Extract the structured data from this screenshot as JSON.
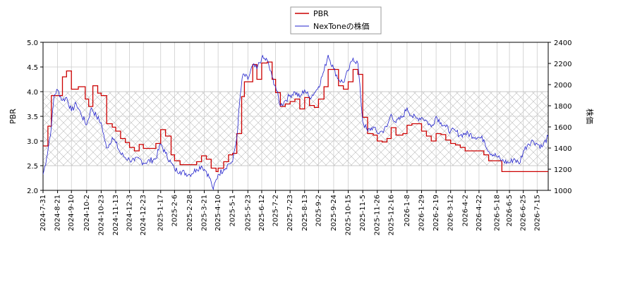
{
  "chart_data": {
    "type": "line",
    "legend": {
      "placement": "top-center",
      "entries": [
        {
          "label": "PBR",
          "color": "#cc0000"
        },
        {
          "label": "NexToneの株価",
          "color": "#2222cc"
        }
      ]
    },
    "ylabel_left": "PBR",
    "ylabel_right": "株価",
    "ylim_left": [
      2.0,
      5.0
    ],
    "ylim_right": [
      1000,
      2400
    ],
    "yticks_left": [
      "2.0",
      "2.5",
      "3.0",
      "3.5",
      "4.0",
      "4.5",
      "5.0"
    ],
    "yticks_right": [
      "1000",
      "1200",
      "1400",
      "1600",
      "1800",
      "2000",
      "2200",
      "2400"
    ],
    "x_range": [
      "2024-7-31",
      "2026-7-31"
    ],
    "x_ticks": [
      "2024-7-31",
      "2024-8-21",
      "2024-9-10",
      "2024-10-2",
      "2024-10-23",
      "2024-11-13",
      "2024-12-3",
      "2024-12-23",
      "2025-1-17",
      "2025-2-6",
      "2025-2-28",
      "2025-3-21",
      "2025-4-10",
      "2025-5-1",
      "2025-5-23",
      "2025-6-12",
      "2025-7-2",
      "2025-7-23",
      "2025-8-13",
      "2025-9-2",
      "2025-9-24",
      "2025-10-15",
      "2025-11-5",
      "2025-11-26",
      "2025-12-16",
      "2026-1-8",
      "2026-1-29",
      "2026-2-19",
      "2026-3-12",
      "2026-4-2",
      "2026-4-22",
      "2026-5-18",
      "2026-6-5",
      "2026-6-25",
      "2026-7-15"
    ],
    "shaded_band_left": [
      2.5,
      4.0
    ],
    "grid": true,
    "series": [
      {
        "name": "PBR",
        "axis": "left",
        "color": "#cc0000",
        "points": [
          [
            "2024-7-31",
            2.9
          ],
          [
            "2024-8-7",
            3.3
          ],
          [
            "2024-8-12",
            3.92
          ],
          [
            "2024-8-21",
            3.92
          ],
          [
            "2024-8-28",
            4.3
          ],
          [
            "2024-9-3",
            4.42
          ],
          [
            "2024-9-10",
            4.05
          ],
          [
            "2024-9-20",
            4.1
          ],
          [
            "2024-9-30",
            3.85
          ],
          [
            "2024-10-5",
            3.7
          ],
          [
            "2024-10-11",
            4.12
          ],
          [
            "2024-10-18",
            3.97
          ],
          [
            "2024-10-23",
            3.92
          ],
          [
            "2024-10-31",
            3.35
          ],
          [
            "2024-11-8",
            3.28
          ],
          [
            "2024-11-13",
            3.2
          ],
          [
            "2024-11-20",
            3.05
          ],
          [
            "2024-11-27",
            2.97
          ],
          [
            "2024-12-3",
            2.87
          ],
          [
            "2024-12-10",
            2.8
          ],
          [
            "2024-12-17",
            2.93
          ],
          [
            "2024-12-23",
            2.85
          ],
          [
            "2025-1-10",
            2.95
          ],
          [
            "2025-1-17",
            3.23
          ],
          [
            "2025-1-24",
            3.1
          ],
          [
            "2025-2-1",
            2.72
          ],
          [
            "2025-2-6",
            2.6
          ],
          [
            "2025-2-14",
            2.52
          ],
          [
            "2025-2-28",
            2.52
          ],
          [
            "2025-3-10",
            2.58
          ],
          [
            "2025-3-17",
            2.7
          ],
          [
            "2025-3-24",
            2.63
          ],
          [
            "2025-3-31",
            2.45
          ],
          [
            "2025-4-7",
            2.38
          ],
          [
            "2025-4-10",
            2.45
          ],
          [
            "2025-4-18",
            2.58
          ],
          [
            "2025-4-25",
            2.72
          ],
          [
            "2025-5-1",
            2.75
          ],
          [
            "2025-5-7",
            3.15
          ],
          [
            "2025-5-14",
            3.9
          ],
          [
            "2025-5-18",
            4.2
          ],
          [
            "2025-5-23",
            4.2
          ],
          [
            "2025-5-30",
            4.55
          ],
          [
            "2025-6-5",
            4.25
          ],
          [
            "2025-6-12",
            4.58
          ],
          [
            "2025-6-20",
            4.6
          ],
          [
            "2025-6-27",
            4.25
          ],
          [
            "2025-7-2",
            3.98
          ],
          [
            "2025-7-9",
            3.7
          ],
          [
            "2025-7-16",
            3.75
          ],
          [
            "2025-7-23",
            3.8
          ],
          [
            "2025-7-30",
            3.85
          ],
          [
            "2025-8-6",
            3.65
          ],
          [
            "2025-8-13",
            3.88
          ],
          [
            "2025-8-20",
            3.72
          ],
          [
            "2025-8-27",
            3.68
          ],
          [
            "2025-9-2",
            3.85
          ],
          [
            "2025-9-10",
            4.1
          ],
          [
            "2025-9-16",
            4.45
          ],
          [
            "2025-9-24",
            4.45
          ],
          [
            "2025-10-1",
            4.12
          ],
          [
            "2025-10-8",
            4.05
          ],
          [
            "2025-10-15",
            4.2
          ],
          [
            "2025-10-22",
            4.45
          ],
          [
            "2025-10-29",
            4.35
          ],
          [
            "2025-11-5",
            3.48
          ],
          [
            "2025-11-12",
            3.15
          ],
          [
            "2025-11-20",
            3.12
          ],
          [
            "2025-11-26",
            3.0
          ],
          [
            "2025-12-3",
            2.98
          ],
          [
            "2025-12-10",
            3.05
          ],
          [
            "2025-12-16",
            3.27
          ],
          [
            "2025-12-23",
            3.12
          ],
          [
            "2026-1-2",
            3.15
          ],
          [
            "2026-1-8",
            3.32
          ],
          [
            "2026-1-15",
            3.35
          ],
          [
            "2026-1-22",
            3.35
          ],
          [
            "2026-1-29",
            3.2
          ],
          [
            "2026-2-5",
            3.1
          ],
          [
            "2026-2-12",
            3.0
          ],
          [
            "2026-2-19",
            3.15
          ],
          [
            "2026-2-26",
            3.13
          ],
          [
            "2026-3-5",
            3.02
          ],
          [
            "2026-3-12",
            2.95
          ],
          [
            "2026-3-19",
            2.92
          ],
          [
            "2026-3-26",
            2.87
          ],
          [
            "2026-4-2",
            2.8
          ],
          [
            "2026-4-22",
            2.8
          ],
          [
            "2026-4-29",
            2.72
          ],
          [
            "2026-5-6",
            2.6
          ],
          [
            "2026-5-18",
            2.6
          ],
          [
            "2026-5-25",
            2.38
          ],
          [
            "2026-7-31",
            2.38
          ]
        ]
      },
      {
        "name": "NexToneの株価",
        "axis": "right",
        "color": "#2222cc",
        "points": [
          [
            "2024-7-31",
            1150
          ],
          [
            "2024-8-5",
            1300
          ],
          [
            "2024-8-12",
            1600
          ],
          [
            "2024-8-16",
            1900
          ],
          [
            "2024-8-21",
            1950
          ],
          [
            "2024-8-28",
            1850
          ],
          [
            "2024-9-3",
            1880
          ],
          [
            "2024-9-10",
            1750
          ],
          [
            "2024-9-17",
            1820
          ],
          [
            "2024-9-24",
            1720
          ],
          [
            "2024-10-2",
            1620
          ],
          [
            "2024-10-9",
            1780
          ],
          [
            "2024-10-16",
            1700
          ],
          [
            "2024-10-23",
            1640
          ],
          [
            "2024-10-28",
            1470
          ],
          [
            "2024-11-1",
            1400
          ],
          [
            "2024-11-8",
            1500
          ],
          [
            "2024-11-13",
            1450
          ],
          [
            "2024-11-20",
            1350
          ],
          [
            "2024-11-27",
            1310
          ],
          [
            "2024-12-3",
            1290
          ],
          [
            "2024-12-10",
            1280
          ],
          [
            "2024-12-17",
            1300
          ],
          [
            "2024-12-23",
            1260
          ],
          [
            "2025-1-10",
            1300
          ],
          [
            "2025-1-17",
            1440
          ],
          [
            "2025-1-24",
            1350
          ],
          [
            "2025-2-1",
            1260
          ],
          [
            "2025-2-6",
            1200
          ],
          [
            "2025-2-14",
            1180
          ],
          [
            "2025-2-28",
            1150
          ],
          [
            "2025-3-10",
            1200
          ],
          [
            "2025-3-17",
            1230
          ],
          [
            "2025-3-24",
            1180
          ],
          [
            "2025-3-31",
            1080
          ],
          [
            "2025-4-3",
            1010
          ],
          [
            "2025-4-10",
            1150
          ],
          [
            "2025-4-18",
            1200
          ],
          [
            "2025-4-25",
            1250
          ],
          [
            "2025-5-1",
            1270
          ],
          [
            "2025-5-7",
            1500
          ],
          [
            "2025-5-12",
            1900
          ],
          [
            "2025-5-16",
            2100
          ],
          [
            "2025-5-23",
            2050
          ],
          [
            "2025-5-30",
            2180
          ],
          [
            "2025-6-5",
            2150
          ],
          [
            "2025-6-12",
            2250
          ],
          [
            "2025-6-20",
            2230
          ],
          [
            "2025-6-27",
            2070
          ],
          [
            "2025-7-2",
            1980
          ],
          [
            "2025-7-9",
            1800
          ],
          [
            "2025-7-16",
            1850
          ],
          [
            "2025-7-23",
            1900
          ],
          [
            "2025-7-30",
            1930
          ],
          [
            "2025-8-6",
            1880
          ],
          [
            "2025-8-13",
            1950
          ],
          [
            "2025-8-20",
            1880
          ],
          [
            "2025-8-27",
            1920
          ],
          [
            "2025-9-2",
            1980
          ],
          [
            "2025-9-10",
            2130
          ],
          [
            "2025-9-16",
            2280
          ],
          [
            "2025-9-24",
            2150
          ],
          [
            "2025-10-1",
            2050
          ],
          [
            "2025-10-8",
            2020
          ],
          [
            "2025-10-15",
            2130
          ],
          [
            "2025-10-22",
            2250
          ],
          [
            "2025-10-29",
            2200
          ],
          [
            "2025-11-5",
            1650
          ],
          [
            "2025-11-12",
            1560
          ],
          [
            "2025-11-20",
            1600
          ],
          [
            "2025-11-26",
            1540
          ],
          [
            "2025-12-3",
            1560
          ],
          [
            "2025-12-10",
            1600
          ],
          [
            "2025-12-16",
            1720
          ],
          [
            "2025-12-23",
            1640
          ],
          [
            "2026-1-2",
            1700
          ],
          [
            "2026-1-8",
            1780
          ],
          [
            "2026-1-15",
            1700
          ],
          [
            "2026-1-22",
            1680
          ],
          [
            "2026-1-29",
            1690
          ],
          [
            "2026-2-5",
            1660
          ],
          [
            "2026-2-12",
            1600
          ],
          [
            "2026-2-19",
            1700
          ],
          [
            "2026-2-26",
            1640
          ],
          [
            "2026-3-5",
            1600
          ],
          [
            "2026-3-12",
            1560
          ],
          [
            "2026-3-19",
            1560
          ],
          [
            "2026-3-26",
            1520
          ],
          [
            "2026-4-2",
            1540
          ],
          [
            "2026-4-22",
            1500
          ],
          [
            "2026-4-29",
            1480
          ],
          [
            "2026-5-6",
            1370
          ],
          [
            "2026-5-18",
            1320
          ],
          [
            "2026-5-25",
            1280
          ],
          [
            "2026-6-5",
            1260
          ],
          [
            "2026-6-12",
            1300
          ],
          [
            "2026-6-19",
            1250
          ],
          [
            "2026-6-25",
            1370
          ],
          [
            "2026-7-2",
            1440
          ],
          [
            "2026-7-9",
            1470
          ],
          [
            "2026-7-15",
            1440
          ],
          [
            "2026-7-22",
            1410
          ],
          [
            "2026-7-31",
            1510
          ]
        ]
      }
    ]
  }
}
